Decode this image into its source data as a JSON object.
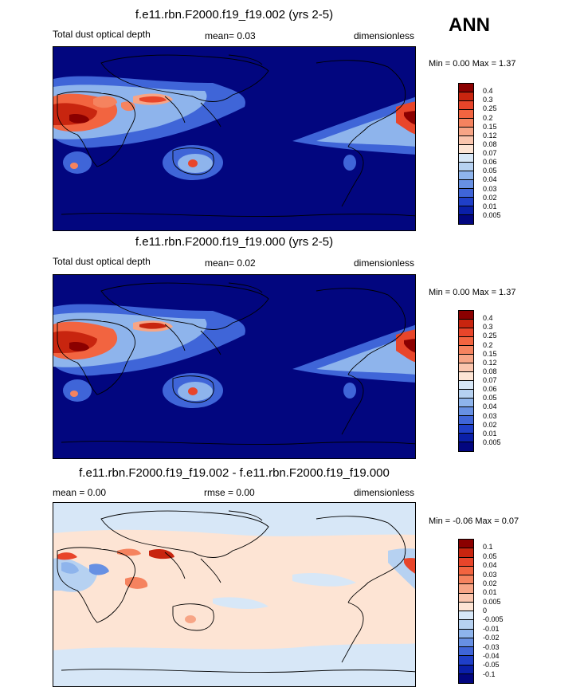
{
  "season": "ANN",
  "panels": [
    {
      "title": "f.e11.rbn.F2000.f19_f19.002 (yrs 2-5)",
      "left_label": "Total dust optical depth",
      "center_label": "mean=   0.03",
      "right_label": "dimensionless",
      "minmax": "Min =   0.00 Max =   1.37",
      "colorbar": {
        "labels": [
          "0.4",
          "0.3",
          "0.25",
          "0.2",
          "0.15",
          "0.12",
          "0.08",
          "0.07",
          "0.06",
          "0.05",
          "0.04",
          "0.03",
          "0.02",
          "0.01",
          "0.005"
        ],
        "colors": [
          "#8b0000",
          "#c8250f",
          "#e8452a",
          "#f26440",
          "#f5835f",
          "#f7a586",
          "#fac5ad",
          "#fde4d4",
          "#d7e7f7",
          "#b6d1f1",
          "#8eb4ec",
          "#6790e3",
          "#3f65d8",
          "#1f3fc8",
          "#0a1fa8",
          "#02067f"
        ]
      }
    },
    {
      "title": "f.e11.rbn.F2000.f19_f19.000 (yrs 2-5)",
      "left_label": "Total dust optical depth",
      "center_label": "mean=   0.02",
      "right_label": "dimensionless",
      "minmax": "Min =   0.00 Max =   1.37",
      "colorbar": {
        "labels": [
          "0.4",
          "0.3",
          "0.25",
          "0.2",
          "0.15",
          "0.12",
          "0.08",
          "0.07",
          "0.06",
          "0.05",
          "0.04",
          "0.03",
          "0.02",
          "0.01",
          "0.005"
        ],
        "colors": [
          "#8b0000",
          "#c8250f",
          "#e8452a",
          "#f26440",
          "#f5835f",
          "#f7a586",
          "#fac5ad",
          "#fde4d4",
          "#d7e7f7",
          "#b6d1f1",
          "#8eb4ec",
          "#6790e3",
          "#3f65d8",
          "#1f3fc8",
          "#0a1fa8",
          "#02067f"
        ]
      }
    },
    {
      "title": "f.e11.rbn.F2000.f19_f19.002 - f.e11.rbn.F2000.f19_f19.000",
      "left_label": "mean =   0.00",
      "center_label": "rmse =   0.00",
      "right_label": "dimensionless",
      "minmax": "Min =  -0.06 Max =   0.07",
      "colorbar": {
        "labels": [
          "0.1",
          "0.05",
          "0.04",
          "0.03",
          "0.02",
          "0.01",
          "0.005",
          "0",
          "-0.005",
          "-0.01",
          "-0.02",
          "-0.03",
          "-0.04",
          "-0.05",
          "-0.1"
        ],
        "colors": [
          "#8b0000",
          "#c8250f",
          "#e8452a",
          "#f26440",
          "#f5835f",
          "#f7a586",
          "#fac5ad",
          "#fde4d4",
          "#d7e7f7",
          "#b6d1f1",
          "#8eb4ec",
          "#6790e3",
          "#3f65d8",
          "#1f3fc8",
          "#0a1fa8",
          "#02067f"
        ]
      }
    }
  ],
  "chart_data": [
    {
      "type": "heatmap",
      "title": "f.e11.rbn.F2000.f19_f19.002 (yrs 2-5)",
      "variable": "Total dust optical depth",
      "units": "dimensionless",
      "mean": 0.03,
      "min": 0.0,
      "max": 1.37,
      "levels": [
        0.005,
        0.01,
        0.02,
        0.03,
        0.04,
        0.05,
        0.06,
        0.07,
        0.08,
        0.12,
        0.15,
        0.2,
        0.25,
        0.3,
        0.4
      ]
    },
    {
      "type": "heatmap",
      "title": "f.e11.rbn.F2000.f19_f19.000 (yrs 2-5)",
      "variable": "Total dust optical depth",
      "units": "dimensionless",
      "mean": 0.02,
      "min": 0.0,
      "max": 1.37,
      "levels": [
        0.005,
        0.01,
        0.02,
        0.03,
        0.04,
        0.05,
        0.06,
        0.07,
        0.08,
        0.12,
        0.15,
        0.2,
        0.25,
        0.3,
        0.4
      ]
    },
    {
      "type": "heatmap",
      "title": "f.e11.rbn.F2000.f19_f19.002 - f.e11.rbn.F2000.f19_f19.000",
      "units": "dimensionless",
      "mean": 0.0,
      "rmse": 0.0,
      "min": -0.06,
      "max": 0.07,
      "levels": [
        -0.1,
        -0.05,
        -0.04,
        -0.03,
        -0.02,
        -0.01,
        -0.005,
        0,
        0.005,
        0.01,
        0.02,
        0.03,
        0.04,
        0.05,
        0.1
      ]
    }
  ]
}
